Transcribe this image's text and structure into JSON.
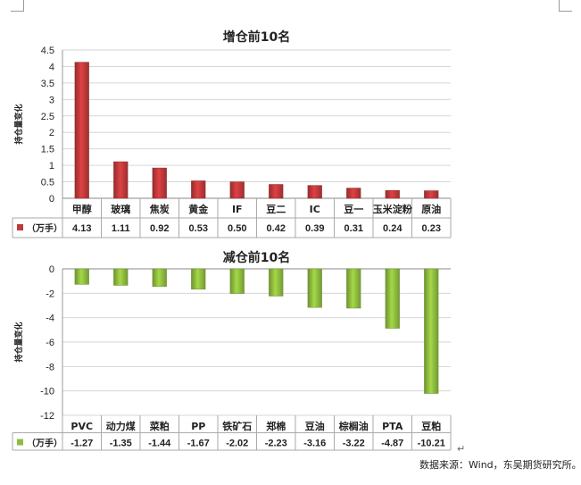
{
  "chart_data": [
    {
      "type": "bar",
      "title": "增仓前10名",
      "ylabel": "持仓量变化",
      "ylim": [
        0,
        4.5
      ],
      "yticks": [
        "4.5",
        "4",
        "3.5",
        "3",
        "2.5",
        "2",
        "1.5",
        "1",
        "0.5",
        "0"
      ],
      "categories": [
        "甲醇",
        "玻璃",
        "焦炭",
        "黄金",
        "IF",
        "豆二",
        "IC",
        "豆一",
        "玉米淀粉",
        "原油"
      ],
      "series": [
        {
          "name": "（万手）",
          "values": [
            4.13,
            1.11,
            0.92,
            0.53,
            0.5,
            0.42,
            0.39,
            0.31,
            0.24,
            0.23
          ],
          "value_labels": [
            "4.13",
            "1.11",
            "0.92",
            "0.53",
            "0.50",
            "0.42",
            "0.39",
            "0.31",
            "0.24",
            "0.23"
          ],
          "color": "#c0393b"
        }
      ],
      "data_table": true,
      "grid": true,
      "legend": "data-table"
    },
    {
      "type": "bar",
      "title": "减仓前10名",
      "ylabel": "持仓量变化",
      "ylim": [
        -12,
        0
      ],
      "yticks": [
        "0",
        "-2",
        "-4",
        "-6",
        "-8",
        "-10",
        "-12"
      ],
      "categories": [
        "PVC",
        "动力煤",
        "菜粕",
        "PP",
        "铁矿石",
        "郑棉",
        "豆油",
        "棕榈油",
        "PTA",
        "豆粕"
      ],
      "series": [
        {
          "name": "（万手）",
          "values": [
            -1.27,
            -1.35,
            -1.44,
            -1.67,
            -2.02,
            -2.23,
            -3.16,
            -3.22,
            -4.87,
            -10.21
          ],
          "value_labels": [
            "-1.27",
            "-1.35",
            "-1.44",
            "-1.67",
            "-2.02",
            "-2.23",
            "-3.16",
            "-3.22",
            "-4.87",
            "-10.21"
          ],
          "color": "#8fbc3f"
        }
      ],
      "data_table": true,
      "grid": true,
      "legend": "data-table"
    }
  ],
  "footer": {
    "source": "数据来源：Wind，东吴期货研究所。",
    "return_mark": "↵"
  }
}
